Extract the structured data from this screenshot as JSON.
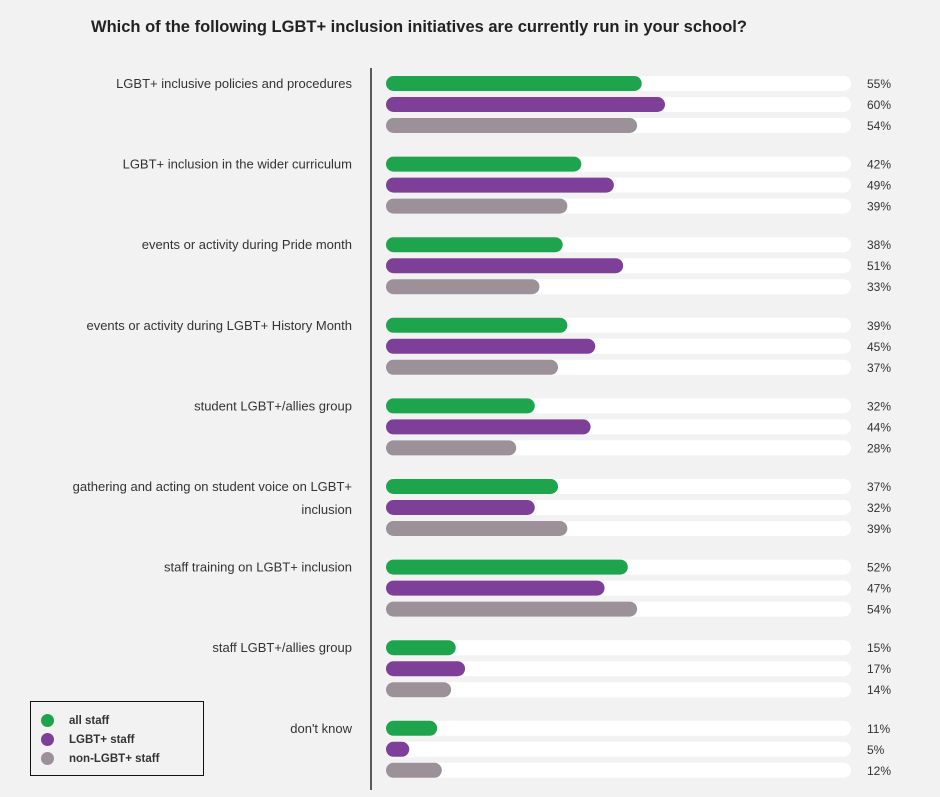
{
  "title": "Which of the following LGBT+ inclusion initiatives are currently run in your school?",
  "colors": {
    "all_staff": "#1fa44e",
    "lgbt_staff": "#7e3f98",
    "non_lgbt_staff": "#9c9199",
    "track": "#ffffff",
    "axis": "#333333"
  },
  "legend": [
    {
      "label": "all staff",
      "color": "#1fa44e"
    },
    {
      "label": "LGBT+ staff",
      "color": "#7e3f98"
    },
    {
      "label": "non-LGBT+ staff",
      "color": "#9c9199"
    }
  ],
  "chart_data": {
    "type": "bar",
    "orientation": "horizontal",
    "title": "Which of the following LGBT+ inclusion initiatives are currently run in your school?",
    "xlim": [
      0,
      100
    ],
    "unit": "%",
    "categories": [
      [
        "LGBT+ inclusive policies and procedures"
      ],
      [
        "LGBT+ inclusion in the wider curriculum"
      ],
      [
        "events or activity during Pride month"
      ],
      [
        "events or activity during LGBT+ History Month"
      ],
      [
        "student LGBT+/allies group"
      ],
      [
        "gathering and acting on student voice on LGBT+",
        "inclusion"
      ],
      [
        "staff training on LGBT+ inclusion"
      ],
      [
        "staff LGBT+/allies group"
      ],
      [
        "don't know"
      ]
    ],
    "series": [
      {
        "name": "all staff",
        "color": "#1fa44e",
        "values": [
          55,
          42,
          38,
          39,
          32,
          37,
          52,
          15,
          11
        ]
      },
      {
        "name": "LGBT+ staff",
        "color": "#7e3f98",
        "values": [
          60,
          49,
          51,
          45,
          44,
          32,
          47,
          17,
          5
        ]
      },
      {
        "name": "non-LGBT+ staff",
        "color": "#9c9199",
        "values": [
          54,
          39,
          33,
          37,
          28,
          39,
          54,
          14,
          12
        ]
      }
    ],
    "grid": false,
    "legend_position": "bottom-left"
  }
}
